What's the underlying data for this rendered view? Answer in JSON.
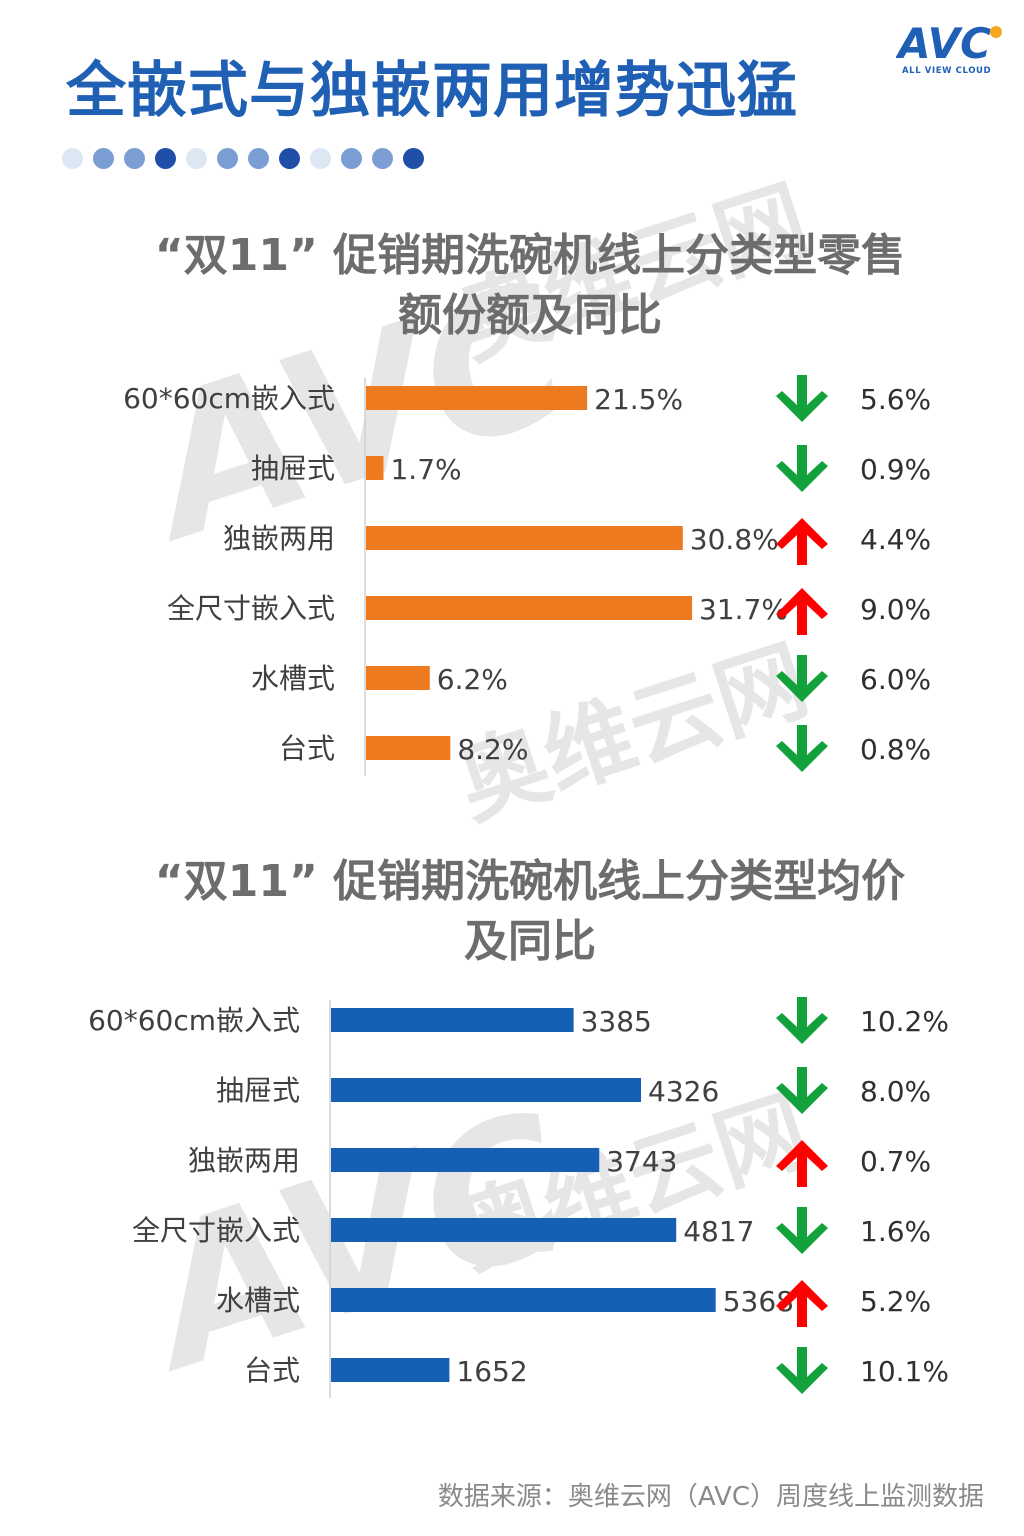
{
  "header": {
    "title": "全嵌式与独嵌两用增势迅猛",
    "logo_text": "AVC",
    "logo_subtitle": "ALL VIEW CLOUD"
  },
  "colors": {
    "title_blue": "#1f5fb4",
    "bar_orange": "#ee7a1f",
    "bar_blue": "#1560b5",
    "arrow_up": "#ff0000",
    "arrow_down": "#13a13c",
    "dot_dark": "#1f4fa8",
    "dot_medium": "#7a9ed3",
    "dot_light": "#dde6f3"
  },
  "watermark": {
    "brand_cn": "奥维云网",
    "brand_en": "ALL VIEW CLOUD",
    "logo": "AVC"
  },
  "chart_data": [
    {
      "type": "bar",
      "orientation": "horizontal",
      "title_line1": "“双11” 促销期洗碗机线上分类型零售",
      "title_line2": "额份额及同比",
      "categories": [
        "60*60cm嵌入式",
        "抽屉式",
        "独嵌两用",
        "全尺寸嵌入式",
        "水槽式",
        "台式"
      ],
      "values": [
        21.5,
        1.7,
        30.8,
        31.7,
        6.2,
        8.2
      ],
      "value_labels": [
        "21.5%",
        "1.7%",
        "30.8%",
        "31.7%",
        "6.2%",
        "8.2%"
      ],
      "yoy_direction": [
        "down",
        "down",
        "up",
        "up",
        "down",
        "down"
      ],
      "yoy_labels": [
        "5.6%",
        "0.9%",
        "4.4%",
        "9.0%",
        "6.0%",
        "0.8%"
      ],
      "xlim": [
        0,
        35
      ],
      "bar_color": "#ee7a1f"
    },
    {
      "type": "bar",
      "orientation": "horizontal",
      "title_line1": "“双11” 促销期洗碗机线上分类型均价",
      "title_line2": "及同比",
      "categories": [
        "60*60cm嵌入式",
        "抽屉式",
        "独嵌两用",
        "全尺寸嵌入式",
        "水槽式",
        "台式"
      ],
      "values": [
        3385,
        4326,
        3743,
        4817,
        5368,
        1652
      ],
      "value_labels": [
        "3385",
        "4326",
        "3743",
        "4817",
        "5368",
        "1652"
      ],
      "yoy_direction": [
        "down",
        "down",
        "up",
        "down",
        "up",
        "down"
      ],
      "yoy_labels": [
        "10.2%",
        "8.0%",
        "0.7%",
        "1.6%",
        "5.2%",
        "10.1%"
      ],
      "xlim": [
        0,
        6000
      ],
      "bar_color": "#1560b5"
    }
  ],
  "footer": {
    "source": "数据来源：奥维云网（AVC）周度线上监测数据"
  }
}
